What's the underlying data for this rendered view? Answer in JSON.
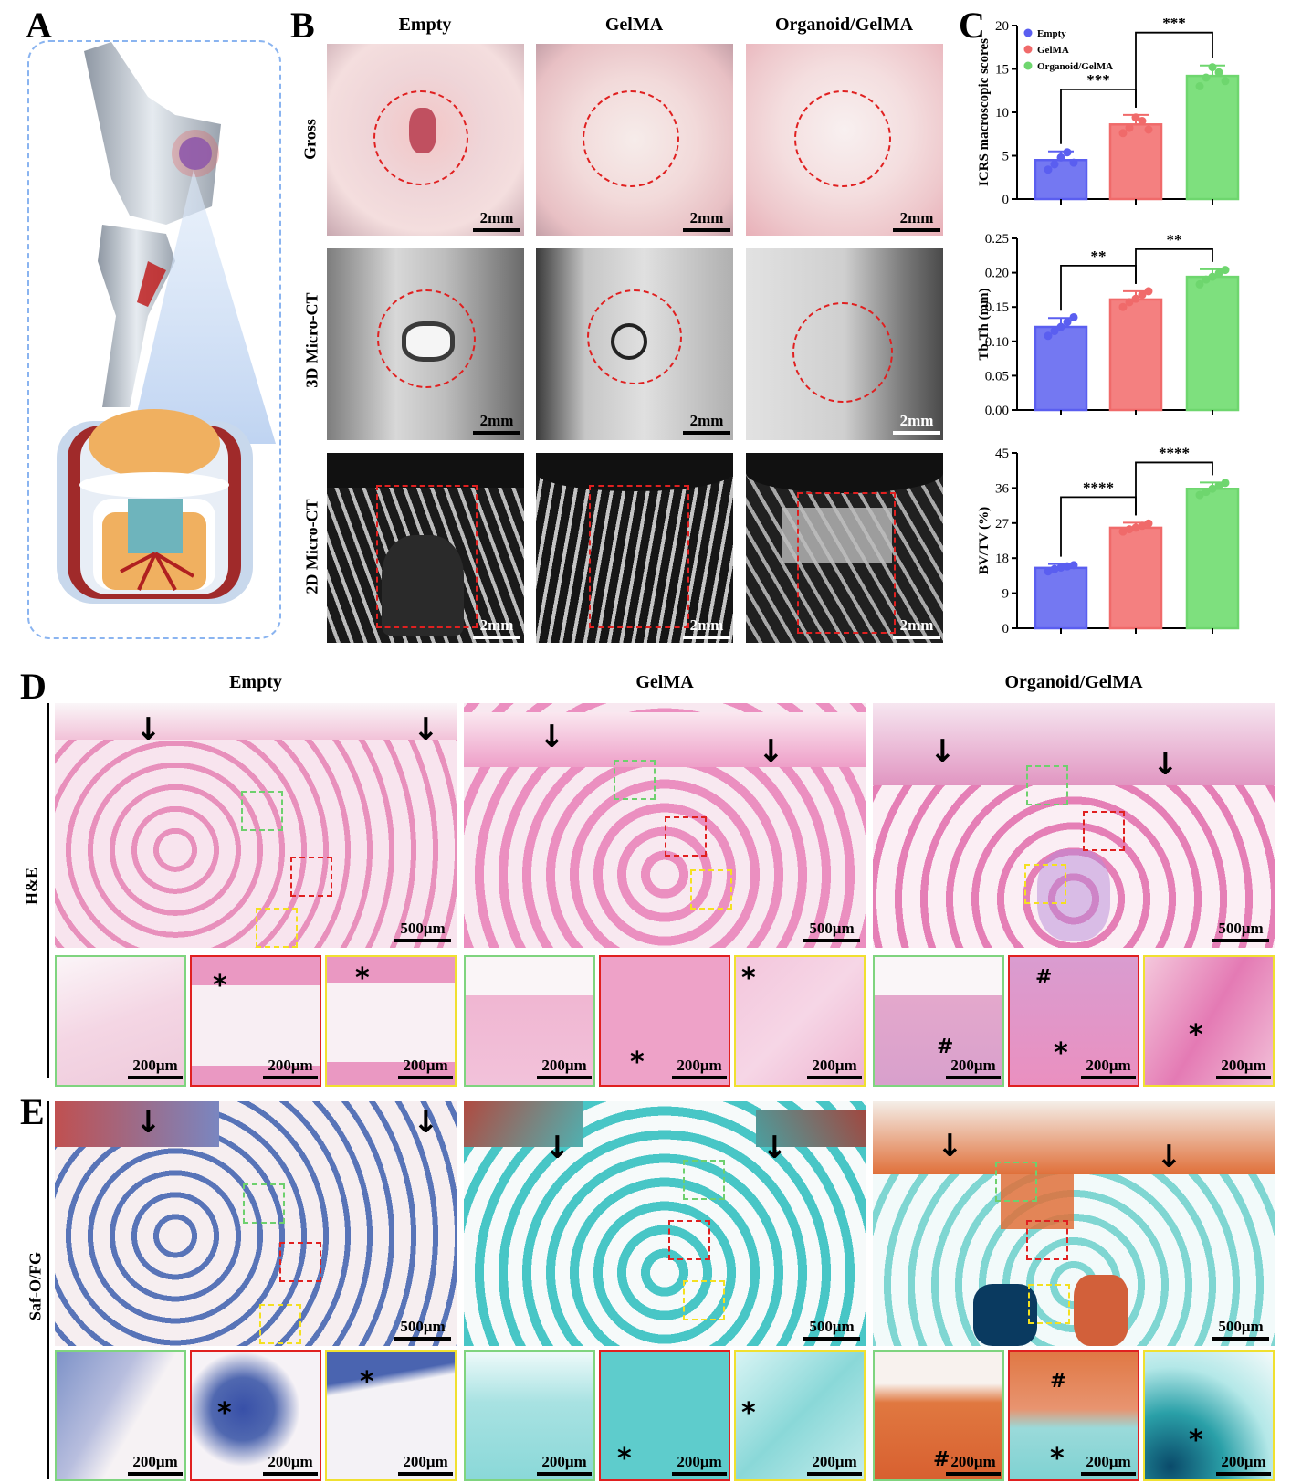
{
  "panels": {
    "a": "A",
    "b": "B",
    "c": "C",
    "d": "D",
    "e": "E"
  },
  "groups": [
    "Empty",
    "GelMA",
    "Organoid/GelMA"
  ],
  "rows_b": [
    "Gross",
    "3D Micro-CT",
    "2D Micro-CT"
  ],
  "rows_de": [
    "H&E",
    "Saf-O/FG"
  ],
  "scale_2mm": "2mm",
  "scale_500": "500μm",
  "scale_200": "200μm",
  "symbols": {
    "arrow": "↓",
    "asterisk": "*",
    "hash": "#"
  },
  "colors": {
    "empty": "#5a5ef0",
    "gelma": "#f06a6a",
    "organoid": "#6ed66e",
    "red_dash": "#e02020",
    "green_dash": "#6ed06e",
    "yellow_dash": "#f4e020",
    "frame_blue": "#8ab4f0"
  },
  "chart_data": [
    {
      "type": "bar",
      "categories": [
        "Empty",
        "GelMA",
        "Organoid/GelMA"
      ],
      "values": [
        4.5,
        8.6,
        14.2
      ],
      "errors": [
        1.0,
        1.1,
        1.2
      ],
      "points": [
        [
          3.4,
          4.0,
          4.8,
          5.4,
          4.2
        ],
        [
          7.6,
          8.2,
          9.4,
          9.0,
          8.0
        ],
        [
          13.0,
          14.0,
          15.2,
          14.6,
          13.6
        ]
      ],
      "ylabel": "ICRS macroscopic scores",
      "ylim": [
        0,
        20
      ],
      "yticks": [
        "0",
        "5",
        "10",
        "15",
        "20"
      ],
      "legend": [
        "Empty",
        "GelMA",
        "Organoid/GelMA"
      ],
      "legend_position": "top-left",
      "significance": [
        "***",
        "***"
      ]
    },
    {
      "type": "bar",
      "categories": [
        "Empty",
        "GelMA",
        "Organoid/GelMA"
      ],
      "values": [
        0.121,
        0.161,
        0.194
      ],
      "errors": [
        0.013,
        0.012,
        0.011
      ],
      "points": [
        [
          0.108,
          0.115,
          0.121,
          0.128,
          0.135
        ],
        [
          0.15,
          0.157,
          0.162,
          0.168,
          0.173
        ],
        [
          0.183,
          0.19,
          0.194,
          0.199,
          0.204
        ]
      ],
      "ylabel": "Tb.Th (mm)",
      "ylim": [
        0,
        0.25
      ],
      "yticks": [
        "0.00",
        "0.05",
        "0.10",
        "0.15",
        "0.20",
        "0.25"
      ],
      "significance": [
        "**",
        "**"
      ]
    },
    {
      "type": "bar",
      "categories": [
        "Empty",
        "GelMA",
        "Organoid/GelMA"
      ],
      "values": [
        15.5,
        25.8,
        35.8
      ],
      "errors": [
        1.0,
        1.3,
        1.6
      ],
      "points": [
        [
          14.6,
          15.2,
          15.6,
          15.9,
          16.2
        ],
        [
          24.8,
          25.4,
          25.8,
          26.3,
          26.9
        ],
        [
          34.2,
          35.0,
          35.8,
          36.6,
          37.3
        ]
      ],
      "ylabel": "BV/TV (%)",
      "ylim": [
        0,
        45
      ],
      "yticks": [
        "0",
        "9",
        "18",
        "27",
        "36",
        "45"
      ],
      "significance": [
        "****",
        "****"
      ]
    }
  ]
}
